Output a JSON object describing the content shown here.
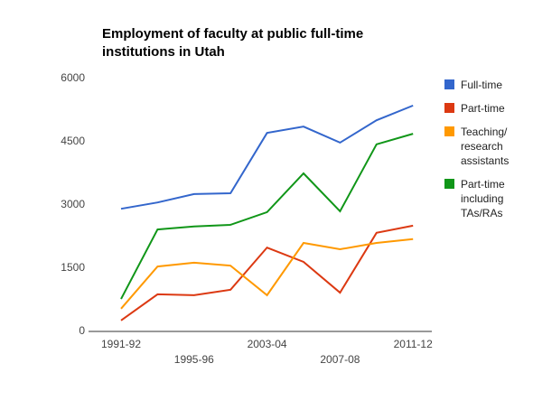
{
  "chart_data": {
    "type": "line",
    "title": "Employment of faculty at public full-time institutions in Utah",
    "categories": [
      "1991-92",
      null,
      "1995-96",
      null,
      "2003-04",
      null,
      "2007-08",
      null,
      "2011-12"
    ],
    "series": [
      {
        "name": "Full-time",
        "color": "#3366cc",
        "values": [
          2910,
          3060,
          3260,
          3280,
          4710,
          4860,
          4480,
          5010,
          5360
        ]
      },
      {
        "name": "Part-time",
        "color": "#dc3912",
        "values": [
          260,
          880,
          860,
          990,
          1990,
          1650,
          920,
          2340,
          2510
        ]
      },
      {
        "name": "Teaching/ research assistants",
        "color": "#ff9900",
        "values": [
          540,
          1540,
          1630,
          1560,
          860,
          2100,
          1950,
          2100,
          2190
        ]
      },
      {
        "name": "Part-time including TAs/RAs",
        "color": "#109618",
        "values": [
          770,
          2420,
          2490,
          2530,
          2830,
          3750,
          2850,
          4440,
          4690
        ]
      }
    ],
    "ylim": [
      0,
      6000
    ],
    "yticks": [
      0,
      1500,
      3000,
      4500,
      6000
    ],
    "grid": false,
    "legend": "right"
  }
}
